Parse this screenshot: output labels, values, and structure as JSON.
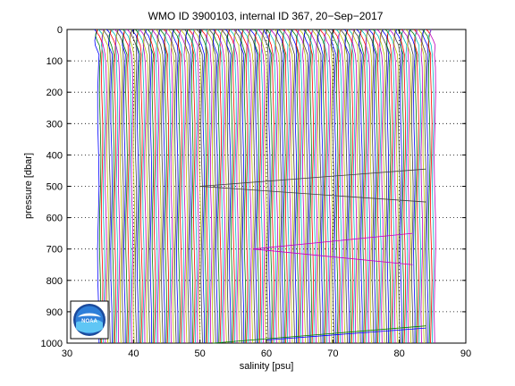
{
  "chart_data": {
    "type": "line",
    "title": "WMO ID 3900103, internal ID 367, 20−Sep−2017",
    "xlabel": "salinity [psu]",
    "ylabel": "pressure [dbar]",
    "xlim": [
      30,
      90
    ],
    "ylim": [
      0,
      1000
    ],
    "y_reversed": true,
    "xticks": [
      30,
      40,
      50,
      60,
      70,
      80,
      90
    ],
    "yticks": [
      0,
      100,
      200,
      300,
      400,
      500,
      600,
      700,
      800,
      900,
      1000
    ],
    "grid": "dotted",
    "profile_count": 180,
    "profile_start_salinity": 34.7,
    "profile_step_salinity": 0.283,
    "series_colors": [
      "#0000ff",
      "#008000",
      "#ff0000",
      "#00bfbf",
      "#bf00bf",
      "#bfbf00",
      "#404040"
    ],
    "logo": "noaa-logo"
  }
}
